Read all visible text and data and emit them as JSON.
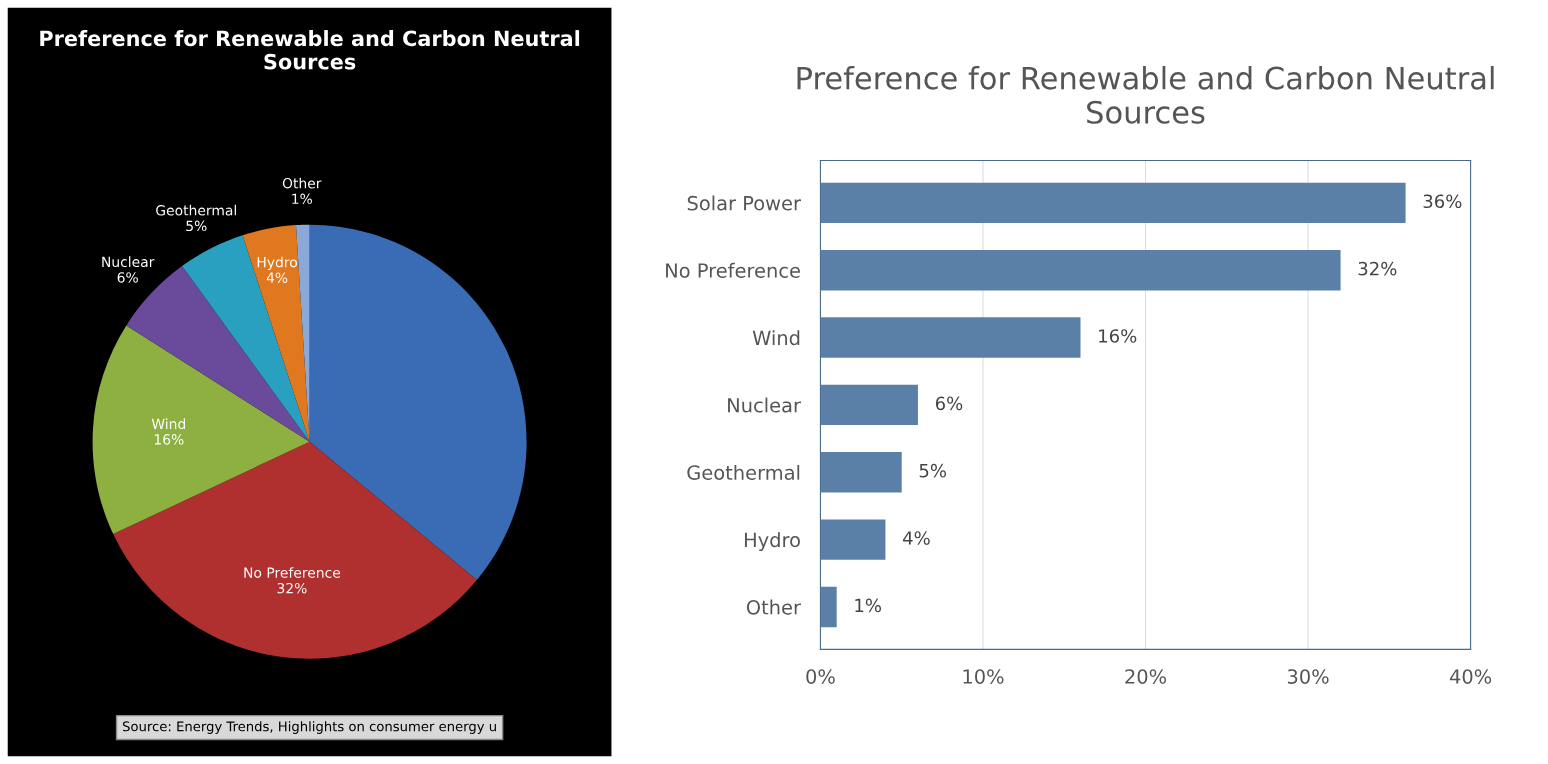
{
  "chart_data": [
    {
      "type": "pie",
      "title": "Preference for Renewable and Carbon Neutral Sources",
      "categories": [
        null,
        "No Preference",
        "Wind",
        "Nuclear",
        "Geothermal",
        "Hydro",
        "Other"
      ],
      "values": [
        36,
        32,
        16,
        6,
        5,
        4,
        1
      ],
      "value_labels": [
        null,
        "32%",
        "16%",
        "6%",
        "5%",
        "4%",
        "1%"
      ],
      "colors": [
        "#3a6bb5",
        "#b03030",
        "#8db040",
        "#6a4a9a",
        "#2aa0c0",
        "#e07820",
        "#8aa8d8"
      ],
      "annotations": [
        "Source: Energy Trends, Highlights on consumer energy u"
      ]
    },
    {
      "type": "bar",
      "orientation": "horizontal",
      "title": "Preference for Renewable and Carbon Neutral Sources",
      "categories": [
        "Solar Power",
        "No Preference",
        "Wind",
        "Nuclear",
        "Geothermal",
        "Hydro",
        "Other"
      ],
      "values": [
        36,
        32,
        16,
        6,
        5,
        4,
        1
      ],
      "value_labels": [
        "36%",
        "32%",
        "16%",
        "6%",
        "5%",
        "4%",
        "1%"
      ],
      "color": "#5b80a8",
      "xlim": [
        0,
        40
      ],
      "xticks": [
        {
          "value": 0,
          "label": "0%"
        },
        {
          "value": 10,
          "label": "10%"
        },
        {
          "value": 20,
          "label": "20%"
        },
        {
          "value": 30,
          "label": "30%"
        },
        {
          "value": 40,
          "label": "40%"
        }
      ],
      "grid": "x"
    }
  ]
}
